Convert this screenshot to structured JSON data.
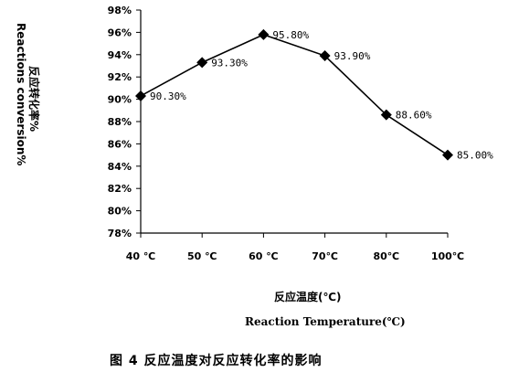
{
  "chart_data": {
    "type": "line",
    "title": "",
    "categories": [
      "40 ℃",
      "50 ℃",
      "60 ℃",
      "70℃",
      "80℃",
      "100℃"
    ],
    "values": [
      90.3,
      93.3,
      95.8,
      93.9,
      88.6,
      85.0
    ],
    "data_labels": [
      "90.30%",
      "93.30%",
      "95.80%",
      "93.90%",
      "88.60%",
      "85.00%"
    ],
    "yticks": [
      "78%",
      "80%",
      "82%",
      "84%",
      "86%",
      "88%",
      "90%",
      "92%",
      "94%",
      "96%",
      "98%"
    ],
    "ylim": [
      78,
      98
    ],
    "ylabel_cn": "反应转化率%",
    "ylabel_en": "Reactions conversion%",
    "xlabel_cn": "反应温度(℃)",
    "xlabel_en": "Reaction Temperature(℃)",
    "marker": "diamond",
    "grid": false,
    "legend": "none",
    "line_color": "#000000"
  },
  "caption": "图 4   反应温度对反应转化率的影响"
}
